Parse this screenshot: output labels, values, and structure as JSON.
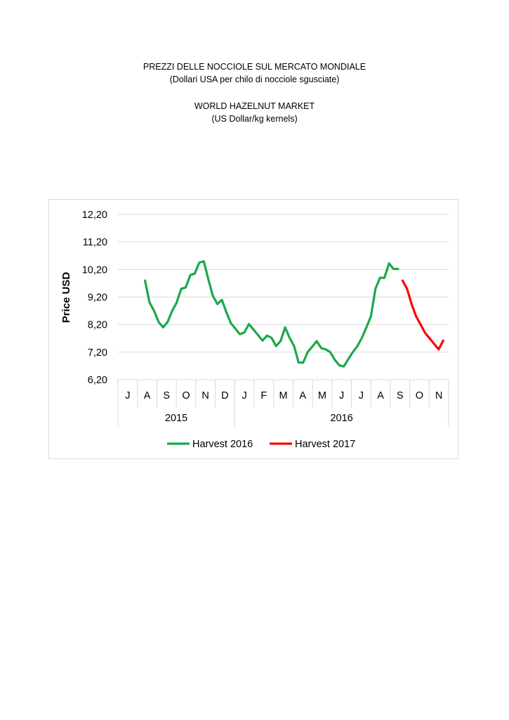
{
  "header": {
    "line1": "PREZZI DELLE NOCCIOLE SUL MERCATO MONDIALE",
    "line2": "(Dollari USA per chilo di nocciole sgusciate)",
    "line3": "WORLD HAZELNUT MARKET",
    "line4": "(US Dollar/kg kernels)"
  },
  "chart_data": {
    "type": "line",
    "title": "",
    "xlabel": "",
    "ylabel": "Price USD",
    "ylim": [
      6.2,
      12.2
    ],
    "yticks": [
      "12,20",
      "11,20",
      "10,20",
      "9,20",
      "8,20",
      "7,20",
      "6,20"
    ],
    "yticks_values": [
      12.2,
      11.2,
      10.2,
      9.2,
      8.2,
      7.2,
      6.2
    ],
    "months": [
      "J",
      "A",
      "S",
      "O",
      "N",
      "D",
      "J",
      "F",
      "M",
      "A",
      "M",
      "J",
      "J",
      "A",
      "S",
      "O",
      "N"
    ],
    "years": [
      {
        "label": "2015",
        "months": 6
      },
      {
        "label": "2016",
        "months": 11
      }
    ],
    "grid": true,
    "legend_position": "bottom",
    "series": [
      {
        "name": "Harvest 2016",
        "color": "#1ca84a",
        "x": [
          1.5,
          1.75,
          2.0,
          2.25,
          2.5,
          2.75,
          3.0,
          3.25,
          3.5,
          3.75,
          4.0,
          4.25,
          4.5,
          4.75,
          5.0,
          5.25,
          5.5,
          5.75,
          6.0,
          6.25,
          6.5,
          6.75,
          7.0,
          7.25,
          7.5,
          7.75,
          8.0,
          8.25,
          8.5,
          8.75,
          9.0,
          9.25,
          9.5,
          9.75,
          10.0,
          10.25,
          10.5,
          10.75,
          11.0,
          11.25,
          11.5,
          11.75,
          12.0,
          12.25,
          12.5,
          12.75,
          13.0,
          13.25,
          13.5,
          13.75,
          14.0,
          14.25,
          14.5,
          14.75,
          15.0
        ],
        "values": [
          9.8,
          9.0,
          8.7,
          8.3,
          8.1,
          8.3,
          8.7,
          9.0,
          9.5,
          9.55,
          10.0,
          10.05,
          10.45,
          10.5,
          9.85,
          9.25,
          8.95,
          9.1,
          8.65,
          8.25,
          8.05,
          7.85,
          7.92,
          8.22,
          8.02,
          7.82,
          7.62,
          7.8,
          7.72,
          7.42,
          7.6,
          8.1,
          7.72,
          7.42,
          6.82,
          6.82,
          7.2,
          7.4,
          7.6,
          7.35,
          7.3,
          7.2,
          6.92,
          6.72,
          6.68,
          6.95,
          7.2,
          7.42,
          7.72,
          8.1,
          8.5,
          9.5,
          9.9,
          9.9,
          10.42
        ]
      },
      {
        "name": "Harvest 2016 (end)",
        "color": "#1ca84a",
        "x": [
          15.0,
          15.25,
          15.5
        ],
        "values": [
          10.42,
          10.22,
          10.22
        ]
      },
      {
        "name": "Harvest 2017",
        "color": "#ff0000",
        "x": [
          15.75,
          16.0,
          16.25,
          16.5,
          16.75,
          17.0,
          17.25,
          17.5,
          17.75,
          18.0
        ],
        "values": [
          9.8,
          9.5,
          8.95,
          8.5,
          8.2,
          7.9,
          7.7,
          7.5,
          7.3,
          7.62
        ]
      }
    ],
    "legend": [
      "Harvest 2016",
      "Harvest 2017"
    ]
  }
}
